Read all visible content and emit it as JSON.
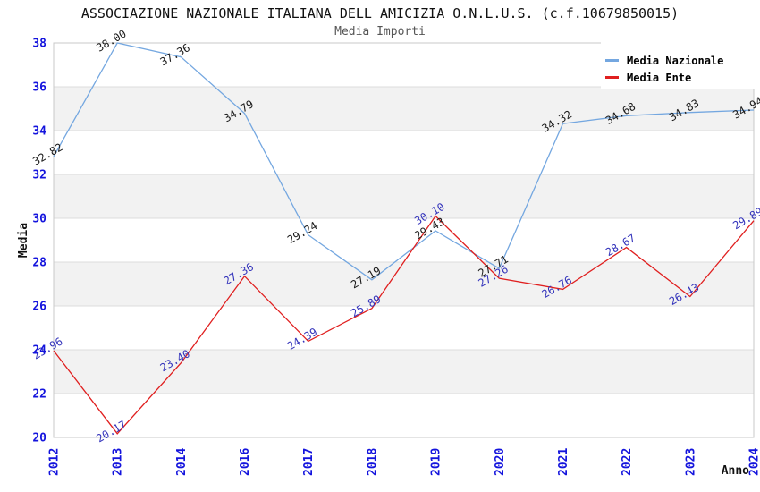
{
  "chart_data": {
    "type": "line",
    "title": "ASSOCIAZIONE NAZIONALE ITALIANA DELL AMICIZIA O.N.L.U.S. (c.f.10679850015)",
    "subtitle": "Media Importi",
    "xlabel": "Anno",
    "ylabel": "Media",
    "categories": [
      "2012",
      "2013",
      "2014",
      "2016",
      "2017",
      "2018",
      "2019",
      "2020",
      "2021",
      "2022",
      "2023",
      "2024"
    ],
    "series": [
      {
        "name": "Media Nazionale",
        "color": "#74a7e0",
        "label_color": "#1a1a1a",
        "values": [
          32.82,
          38.0,
          37.36,
          34.79,
          29.24,
          27.19,
          29.43,
          27.71,
          34.32,
          34.68,
          34.83,
          34.94
        ]
      },
      {
        "name": "Media Ente",
        "color": "#e01f1f",
        "label_color": "#3333bb",
        "values": [
          23.96,
          20.17,
          23.4,
          27.36,
          24.39,
          25.89,
          30.1,
          27.26,
          26.76,
          28.67,
          26.43,
          29.89
        ]
      }
    ],
    "ylim": [
      20,
      38
    ],
    "ytick_step": 2,
    "grid": true,
    "legend_position": "top-right",
    "style": {
      "band_colors": [
        "#ffffff",
        "#f2f2f2"
      ],
      "grid_color": "#dcdcdc",
      "border_color": "#c8c8c8",
      "axis_tick_color": "#1414dd",
      "axis_title_color": "#111111",
      "title_color": "#111111",
      "subtitle_color": "#555555"
    }
  }
}
